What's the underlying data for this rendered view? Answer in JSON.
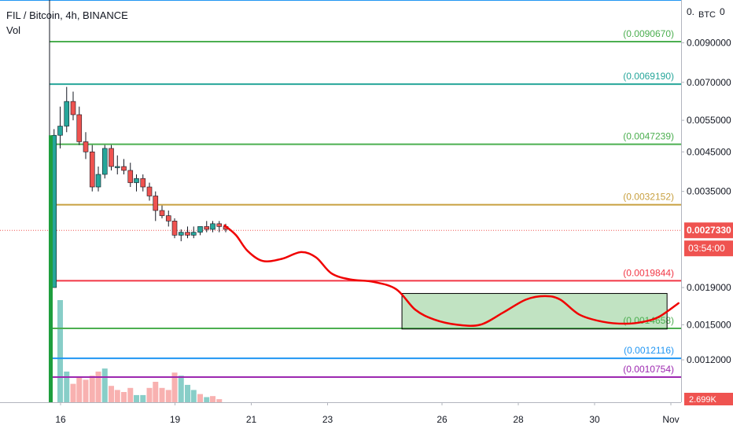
{
  "header": {
    "symbol": "FIL / Bitcoin, 4h, BINANCE",
    "volume_label": "Vol"
  },
  "price_axis": {
    "unit_label": "BTC",
    "current_price": "0.0027330",
    "countdown": "03:54:00",
    "volume_label": "2.699K"
  },
  "chart_data": {
    "type": "candlestick",
    "symbol": "FIL / Bitcoin",
    "interval": "4h",
    "exchange": "BINANCE",
    "x_ticks": [
      "16",
      "19",
      "21",
      "23",
      "26",
      "28",
      "30",
      "Nov"
    ],
    "x_tick_days": [
      16,
      19,
      21,
      23,
      26,
      28,
      30,
      32
    ],
    "y_ticks": [
      "0.0090000",
      "0.0070000",
      "0.0055000",
      "0.0045000",
      "0.0035000",
      "0.0019000",
      "0.0015000",
      "0.0012000"
    ],
    "y_tick_values": [
      0.009,
      0.007,
      0.0055,
      0.0045,
      0.0035,
      0.0019,
      0.0015,
      0.0012
    ],
    "y_ticks_partial": [
      "0.",
      "0"
    ],
    "scale": "log",
    "current_price": 0.002733,
    "levels": [
      {
        "value": 0.009067,
        "label": "(0.0090670)",
        "color": "#4caf50"
      },
      {
        "value": 0.006919,
        "label": "(0.0069190)",
        "color": "#26a69a"
      },
      {
        "value": 0.0047239,
        "label": "(0.0047239)",
        "color": "#4caf50"
      },
      {
        "value": 0.0032152,
        "label": "(0.0032152)",
        "color": "#c8a040"
      },
      {
        "value": 0.0019844,
        "label": "(0.0019844)",
        "color": "#f23645"
      },
      {
        "value": 0.0014658,
        "label": "(0.0014658)",
        "color": "#4caf50"
      },
      {
        "value": 0.0012116,
        "label": "(0.0012116)",
        "color": "#2196f3"
      },
      {
        "value": 0.0010754,
        "label": "(0.0010754)",
        "color": "#9c27b0"
      }
    ],
    "candles": [
      {
        "x": 15.83,
        "o": 0.0019,
        "h": 0.0052,
        "l": 0.0019,
        "c": 0.005
      },
      {
        "x": 15.99,
        "o": 0.005,
        "h": 0.006,
        "l": 0.0046,
        "c": 0.0053
      },
      {
        "x": 16.16,
        "o": 0.0053,
        "h": 0.0068,
        "l": 0.0051,
        "c": 0.0062
      },
      {
        "x": 16.33,
        "o": 0.0062,
        "h": 0.0066,
        "l": 0.0055,
        "c": 0.0057
      },
      {
        "x": 16.49,
        "o": 0.0057,
        "h": 0.006,
        "l": 0.0047,
        "c": 0.0048
      },
      {
        "x": 16.66,
        "o": 0.0048,
        "h": 0.0051,
        "l": 0.0043,
        "c": 0.0045
      },
      {
        "x": 16.83,
        "o": 0.0045,
        "h": 0.0047,
        "l": 0.0035,
        "c": 0.0036
      },
      {
        "x": 16.99,
        "o": 0.0036,
        "h": 0.0041,
        "l": 0.0035,
        "c": 0.0039
      },
      {
        "x": 17.16,
        "o": 0.0039,
        "h": 0.0047,
        "l": 0.0038,
        "c": 0.0046
      },
      {
        "x": 17.33,
        "o": 0.0046,
        "h": 0.0047,
        "l": 0.004,
        "c": 0.0041
      },
      {
        "x": 17.49,
        "o": 0.0041,
        "h": 0.0044,
        "l": 0.0039,
        "c": 0.0041
      },
      {
        "x": 17.66,
        "o": 0.0041,
        "h": 0.0043,
        "l": 0.0039,
        "c": 0.004
      },
      {
        "x": 17.83,
        "o": 0.004,
        "h": 0.0042,
        "l": 0.0036,
        "c": 0.0037
      },
      {
        "x": 17.99,
        "o": 0.0037,
        "h": 0.0039,
        "l": 0.0035,
        "c": 0.0038
      },
      {
        "x": 18.16,
        "o": 0.0038,
        "h": 0.0039,
        "l": 0.0035,
        "c": 0.0036
      },
      {
        "x": 18.33,
        "o": 0.0036,
        "h": 0.0037,
        "l": 0.0033,
        "c": 0.0034
      },
      {
        "x": 18.49,
        "o": 0.0034,
        "h": 0.0035,
        "l": 0.0029,
        "c": 0.0031
      },
      {
        "x": 18.66,
        "o": 0.0031,
        "h": 0.0032,
        "l": 0.00295,
        "c": 0.003
      },
      {
        "x": 18.83,
        "o": 0.003,
        "h": 0.0031,
        "l": 0.0028,
        "c": 0.0029
      },
      {
        "x": 18.99,
        "o": 0.0029,
        "h": 0.00295,
        "l": 0.0026,
        "c": 0.00265
      },
      {
        "x": 19.16,
        "o": 0.00265,
        "h": 0.00275,
        "l": 0.00255,
        "c": 0.0027
      },
      {
        "x": 19.33,
        "o": 0.0027,
        "h": 0.0028,
        "l": 0.0026,
        "c": 0.00265
      },
      {
        "x": 19.49,
        "o": 0.00265,
        "h": 0.0028,
        "l": 0.0026,
        "c": 0.0027
      },
      {
        "x": 19.66,
        "o": 0.0027,
        "h": 0.0028,
        "l": 0.00265,
        "c": 0.0028
      },
      {
        "x": 19.83,
        "o": 0.0028,
        "h": 0.0029,
        "l": 0.0027,
        "c": 0.00275
      },
      {
        "x": 19.99,
        "o": 0.00275,
        "h": 0.0029,
        "l": 0.0027,
        "c": 0.00285
      },
      {
        "x": 20.16,
        "o": 0.00285,
        "h": 0.0029,
        "l": 0.0027,
        "c": 0.0028
      },
      {
        "x": 20.33,
        "o": 0.0028,
        "h": 0.00285,
        "l": 0.0027,
        "c": 0.00275
      }
    ],
    "volume": [
      {
        "x": 15.99,
        "v": 100,
        "up": true
      },
      {
        "x": 16.16,
        "v": 30,
        "up": true
      },
      {
        "x": 16.33,
        "v": 18,
        "up": false
      },
      {
        "x": 16.49,
        "v": 24,
        "up": false
      },
      {
        "x": 16.66,
        "v": 22,
        "up": false
      },
      {
        "x": 16.83,
        "v": 26,
        "up": false
      },
      {
        "x": 16.99,
        "v": 30,
        "up": false
      },
      {
        "x": 17.16,
        "v": 33,
        "up": true
      },
      {
        "x": 17.33,
        "v": 16,
        "up": false
      },
      {
        "x": 17.49,
        "v": 12,
        "up": false
      },
      {
        "x": 17.66,
        "v": 10,
        "up": false
      },
      {
        "x": 17.83,
        "v": 14,
        "up": false
      },
      {
        "x": 17.99,
        "v": 7,
        "up": true
      },
      {
        "x": 18.16,
        "v": 7,
        "up": true
      },
      {
        "x": 18.33,
        "v": 14,
        "up": false
      },
      {
        "x": 18.49,
        "v": 20,
        "up": false
      },
      {
        "x": 18.66,
        "v": 14,
        "up": false
      },
      {
        "x": 18.83,
        "v": 12,
        "up": false
      },
      {
        "x": 18.99,
        "v": 29,
        "up": false
      },
      {
        "x": 19.16,
        "v": 26,
        "up": true
      },
      {
        "x": 19.33,
        "v": 17,
        "up": true
      },
      {
        "x": 19.49,
        "v": 12,
        "up": true
      },
      {
        "x": 19.66,
        "v": 8,
        "up": false
      },
      {
        "x": 19.83,
        "v": 5,
        "up": true
      },
      {
        "x": 19.99,
        "v": 6,
        "up": false
      },
      {
        "x": 20.16,
        "v": 3,
        "up": false
      }
    ],
    "projection": [
      [
        20.3,
        0.00282
      ],
      [
        20.6,
        0.00265
      ],
      [
        20.9,
        0.0024
      ],
      [
        21.3,
        0.00225
      ],
      [
        21.8,
        0.00228
      ],
      [
        22.3,
        0.00238
      ],
      [
        22.7,
        0.0023
      ],
      [
        23.1,
        0.00208
      ],
      [
        23.6,
        0.002
      ],
      [
        24.2,
        0.00197
      ],
      [
        24.8,
        0.00188
      ],
      [
        25.3,
        0.00165
      ],
      [
        25.8,
        0.00155
      ],
      [
        26.4,
        0.0015
      ],
      [
        27.0,
        0.0015
      ],
      [
        27.6,
        0.00162
      ],
      [
        28.2,
        0.00176
      ],
      [
        28.7,
        0.0018
      ],
      [
        29.1,
        0.00176
      ],
      [
        29.6,
        0.0016
      ],
      [
        30.2,
        0.00153
      ],
      [
        30.8,
        0.00151
      ],
      [
        31.3,
        0.00153
      ],
      [
        31.7,
        0.00158
      ],
      [
        32.2,
        0.00172
      ]
    ],
    "zone": {
      "x_start": 24.95,
      "x_end": 31.9,
      "y_low": 0.00146,
      "y_high": 0.00183
    }
  }
}
